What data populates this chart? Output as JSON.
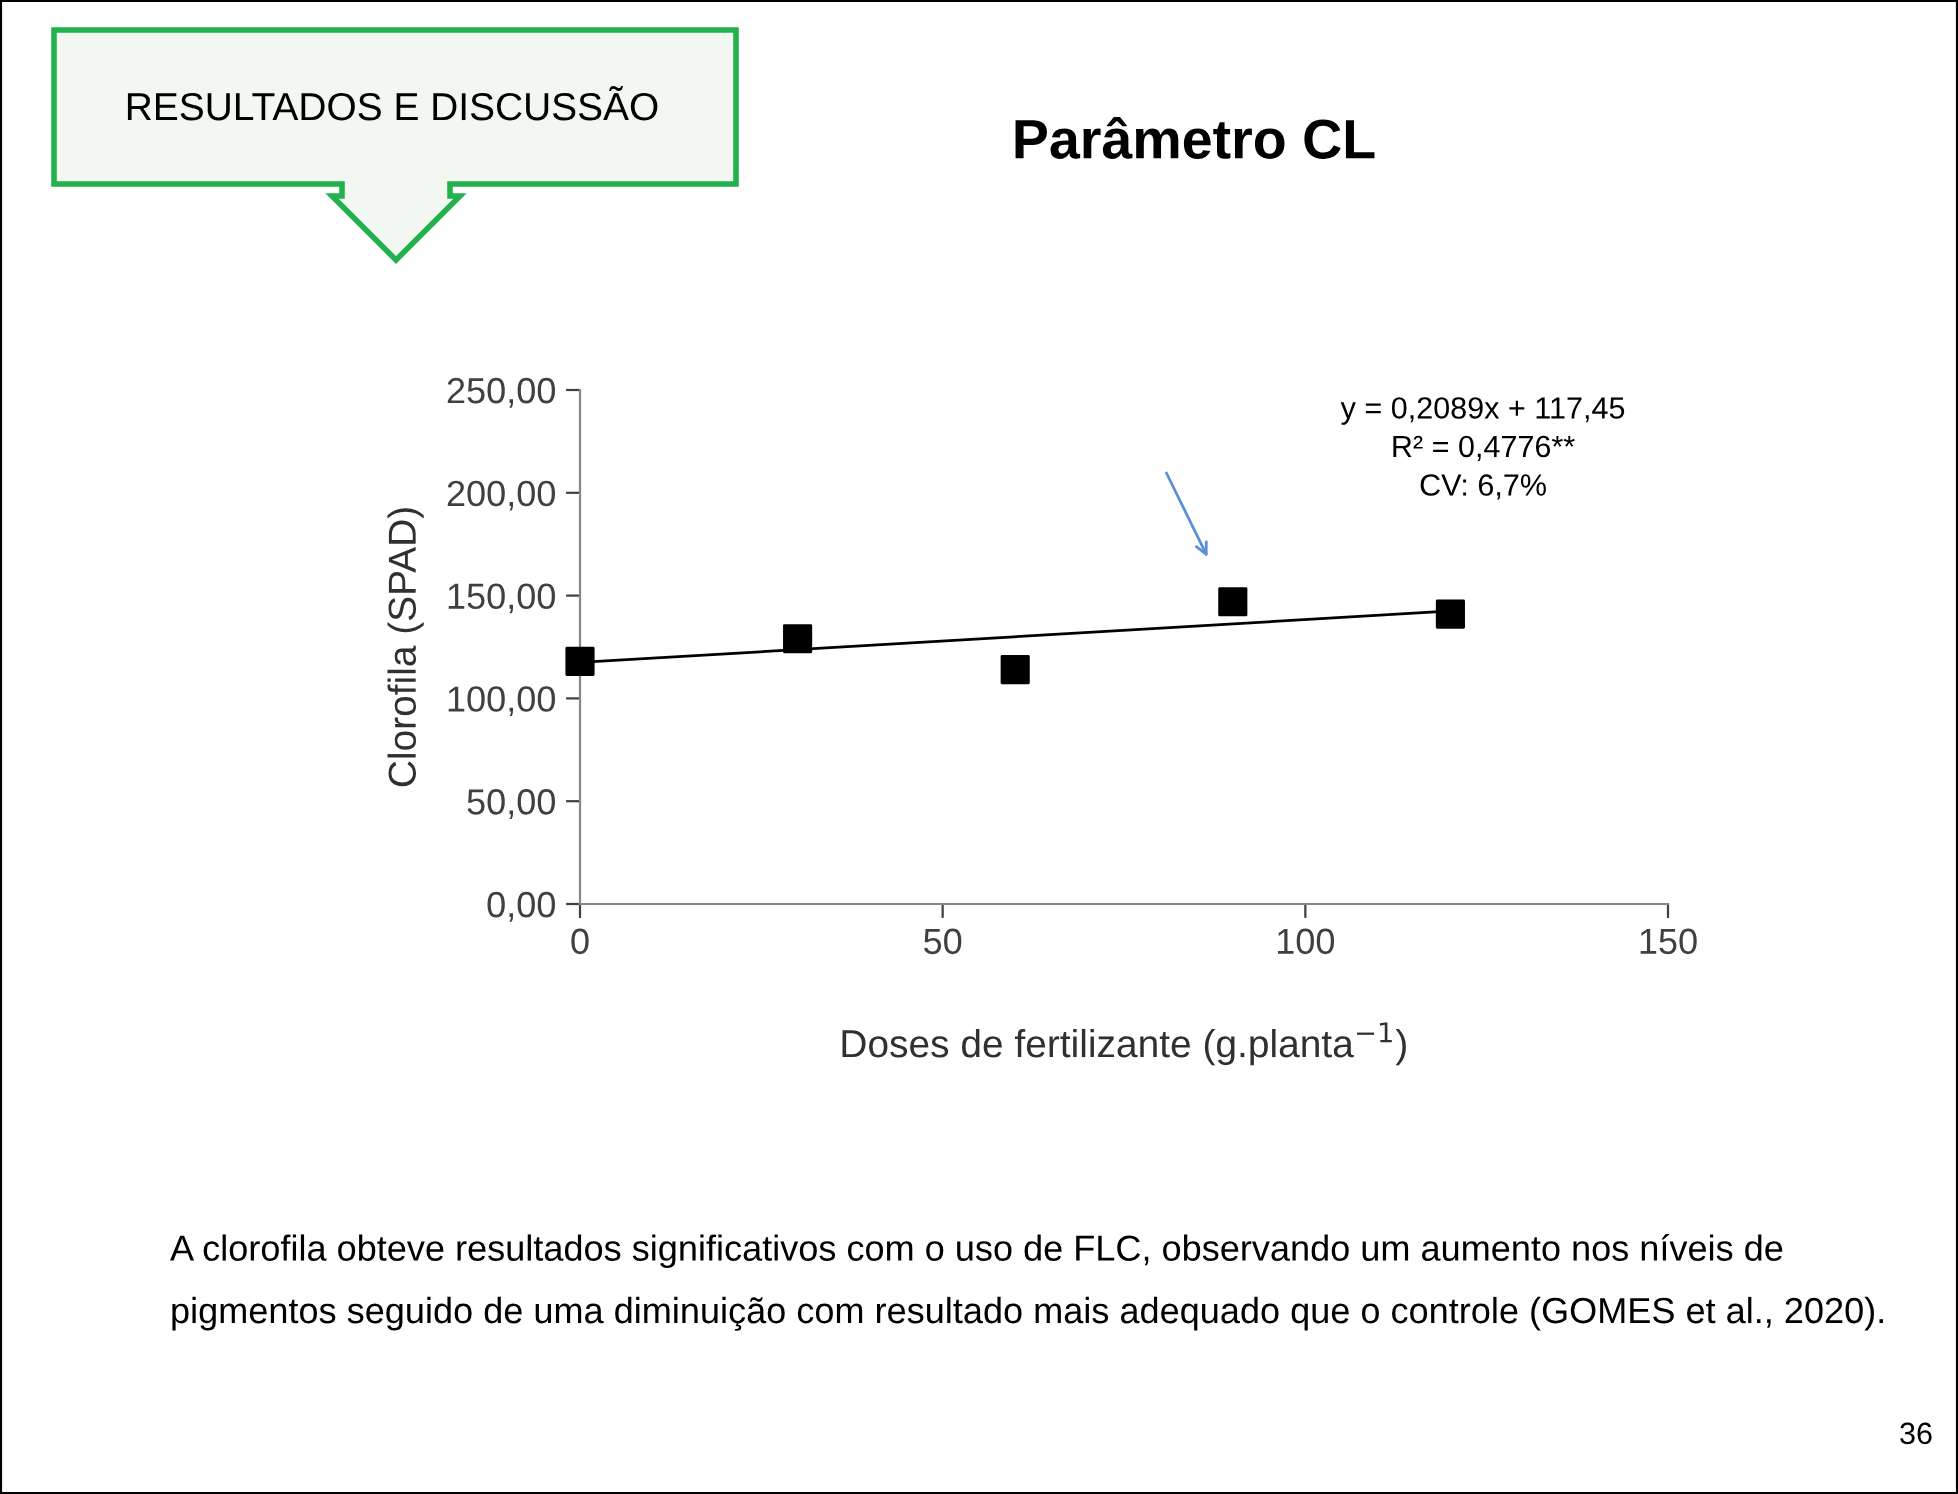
{
  "chart_data": {
    "type": "scatter",
    "title": "Parâmetro CL",
    "xlabel": "Doses de fertilizante (g.planta$^{−1}$)",
    "ylabel": "Clorofila (SPAD)",
    "series": [
      {
        "type": "scatter",
        "color": "#000000",
        "marker": "square",
        "x": [
          0,
          30,
          60,
          90,
          120
        ],
        "values": [
          118,
          129,
          114,
          147,
          141
        ]
      },
      {
        "type": "line",
        "color": "#000000",
        "marker": "none",
        "line_style": "solid",
        "x": [
          0,
          120
        ],
        "values": [
          117.5,
          142.5
        ]
      }
    ],
    "xlim": [
      0,
      150
    ],
    "xticks": [
      0,
      50,
      100,
      150
    ],
    "ylim": [
      0,
      250
    ],
    "yticks": [
      {
        "value": 0,
        "label": "0,00"
      },
      {
        "value": 50,
        "label": "50,00"
      },
      {
        "value": 100,
        "label": "100,00"
      },
      {
        "value": 150,
        "label": "150,00"
      },
      {
        "value": 200,
        "label": "200,00"
      },
      {
        "value": 250,
        "label": "250,00"
      }
    ],
    "grid": false,
    "legend": false,
    "annotations": [
      "y = 0,2089x + 117,45",
      "R² = 0,4776**",
      "CV: 6,7%",
      "RESULTADOS E DISCUSSÃO",
      "A clorofila obteve resultados significativos com o uso de FLC, observando um aumento nos níveis de pigmentos seguido de uma diminuição com resultado mais adequado que o controle (GOMES et al., 2020).",
      "36"
    ]
  }
}
